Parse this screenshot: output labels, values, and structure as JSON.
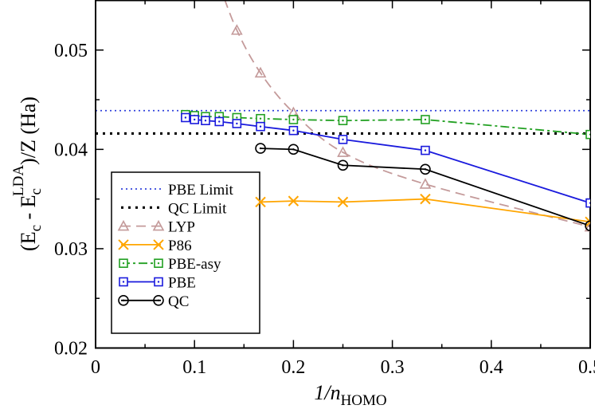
{
  "chart_data": {
    "type": "line",
    "xlabel": {
      "main": "1/n",
      "sub": "HOMO"
    },
    "ylabel": {
      "open": "(E",
      "sub1": "c",
      "minus": " - E",
      "sub2": "c",
      "sup2": "LDA",
      "close": ")/Z  (Ha)"
    },
    "xlim": [
      0,
      0.5
    ],
    "ylim": [
      0.02,
      0.055
    ],
    "xticks": [
      0,
      0.1,
      0.2,
      0.3,
      0.4,
      0.5
    ],
    "xtick_labels": [
      "0",
      "0.1",
      "0.2",
      "0.3",
      "0.4",
      "0.5"
    ],
    "yticks": [
      0.02,
      0.03,
      0.04,
      0.05
    ],
    "ytick_labels": [
      "0.02",
      "0.03",
      "0.04",
      "0.05"
    ],
    "grid": false,
    "legend_position": "lower-left",
    "series": [
      {
        "name": "PBE Limit",
        "kind": "hline",
        "y": 0.0439,
        "color": "#3344dd",
        "style": "dotted",
        "marker": "none"
      },
      {
        "name": "QC Limit",
        "kind": "hline",
        "y": 0.0416,
        "color": "#000000",
        "style": "dotted-thick",
        "marker": "none"
      },
      {
        "name": "LYP",
        "kind": "line",
        "color": "#c49a9a",
        "style": "dashed",
        "marker": "triangle",
        "x": [
          0.1428,
          0.1667,
          0.2,
          0.25,
          0.3333,
          0.5
        ],
        "y": [
          0.052,
          0.0477,
          0.0437,
          0.0397,
          0.0365,
          0.0322
        ],
        "curve_x": [
          0.125,
          0.1428,
          0.1667,
          0.2,
          0.25,
          0.3333,
          0.5
        ],
        "curve_y": [
          0.0566,
          0.052,
          0.0477,
          0.0437,
          0.0397,
          0.0365,
          0.0322
        ]
      },
      {
        "name": "P86",
        "kind": "line",
        "color": "#ffa500",
        "style": "solid",
        "marker": "x",
        "x": [
          0.1667,
          0.2,
          0.25,
          0.3333,
          0.5
        ],
        "y": [
          0.0347,
          0.0348,
          0.0347,
          0.035,
          0.0327
        ],
        "curve_x": [
          0.158,
          0.1667,
          0.2,
          0.25,
          0.3333,
          0.5
        ],
        "curve_y": [
          0.0347,
          0.0347,
          0.0348,
          0.0347,
          0.035,
          0.0327
        ]
      },
      {
        "name": "PBE-asy",
        "kind": "line",
        "color": "#22a022",
        "style": "dashdot",
        "marker": "square-dot",
        "x": [
          0.0909,
          0.1,
          0.1111,
          0.125,
          0.1428,
          0.1667,
          0.2,
          0.25,
          0.3333,
          0.5
        ],
        "y": [
          0.0435,
          0.0434,
          0.0433,
          0.0433,
          0.0432,
          0.0431,
          0.043,
          0.0429,
          0.043,
          0.0415
        ]
      },
      {
        "name": "PBE",
        "kind": "line",
        "color": "#1a1add",
        "style": "solid",
        "marker": "square-dot",
        "x": [
          0.0909,
          0.1,
          0.1111,
          0.125,
          0.1428,
          0.1667,
          0.2,
          0.25,
          0.3333,
          0.5
        ],
        "y": [
          0.0432,
          0.043,
          0.0429,
          0.0428,
          0.0426,
          0.0423,
          0.0419,
          0.041,
          0.0399,
          0.0346
        ]
      },
      {
        "name": "QC",
        "kind": "line",
        "color": "#000000",
        "style": "solid",
        "marker": "circle-dot",
        "x": [
          0.1667,
          0.2,
          0.25,
          0.3333,
          0.5
        ],
        "y": [
          0.0401,
          0.04,
          0.0384,
          0.038,
          0.0323
        ]
      }
    ]
  }
}
